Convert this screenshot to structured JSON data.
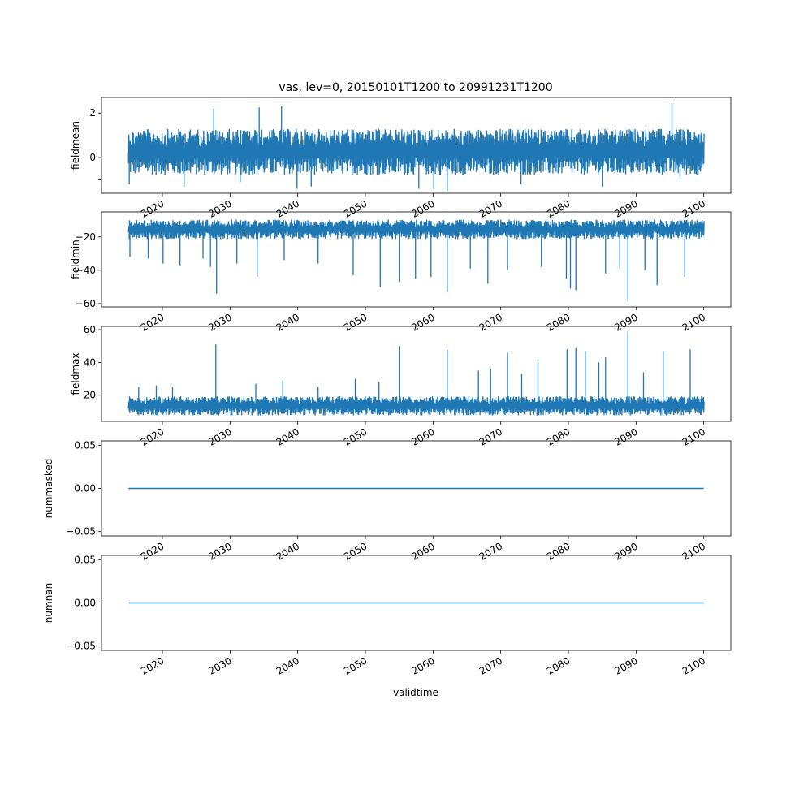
{
  "figure": {
    "title": "vas, lev=0, 20150101T1200 to 20991231T1200",
    "xlabel": "validtime"
  },
  "line_color": "#1f77b4",
  "chart_data": [
    {
      "type": "line",
      "ylabel": "fieldmean",
      "x_range": [
        2015.0,
        2100.0
      ],
      "xlim": [
        2011.0,
        2104.0
      ],
      "ylim": [
        -1.6,
        2.7
      ],
      "yticks": [
        -1,
        0,
        2
      ],
      "ytick_labels": [
        "",
        "0",
        "2"
      ],
      "xticks": [
        2020,
        2030,
        2040,
        2050,
        2060,
        2070,
        2080,
        2090,
        2100
      ],
      "xtick_labels": [
        "2020",
        "2030",
        "2040",
        "2050",
        "2060",
        "2070",
        "2080",
        "2090",
        "2100"
      ],
      "band_low": -0.9,
      "band_high": 1.4,
      "spikes": [
        {
          "x": 2015.1,
          "y": -1.2
        },
        {
          "x": 2023.2,
          "y": -1.3
        },
        {
          "x": 2027.6,
          "y": 2.2
        },
        {
          "x": 2031.5,
          "y": -1.1
        },
        {
          "x": 2034.3,
          "y": 2.25
        },
        {
          "x": 2037.6,
          "y": 2.3
        },
        {
          "x": 2039.9,
          "y": -1.4
        },
        {
          "x": 2042.0,
          "y": -1.3
        },
        {
          "x": 2057.9,
          "y": -1.4
        },
        {
          "x": 2060.1,
          "y": -1.4
        },
        {
          "x": 2062.1,
          "y": -1.5
        },
        {
          "x": 2073.0,
          "y": -1.2
        },
        {
          "x": 2085.0,
          "y": -1.3
        },
        {
          "x": 2095.3,
          "y": 2.45
        },
        {
          "x": 2096.5,
          "y": -1.0
        }
      ]
    },
    {
      "type": "line",
      "ylabel": "fieldmin",
      "x_range": [
        2015.0,
        2100.0
      ],
      "xlim": [
        2011.0,
        2104.0
      ],
      "ylim": [
        -62,
        -5
      ],
      "yticks": [
        -60,
        -40,
        -20
      ],
      "ytick_labels": [
        "−60",
        "−40",
        "−20"
      ],
      "xticks": [
        2020,
        2030,
        2040,
        2050,
        2060,
        2070,
        2080,
        2090,
        2100
      ],
      "xtick_labels": [
        "2020",
        "2030",
        "2040",
        "2050",
        "2060",
        "2070",
        "2080",
        "2090",
        "2100"
      ],
      "band_low": -22,
      "band_high": -9,
      "spikes": [
        {
          "x": 2015.2,
          "y": -32
        },
        {
          "x": 2017.9,
          "y": -33
        },
        {
          "x": 2020.1,
          "y": -36
        },
        {
          "x": 2022.6,
          "y": -37
        },
        {
          "x": 2026.0,
          "y": -33
        },
        {
          "x": 2027.1,
          "y": -38
        },
        {
          "x": 2028.0,
          "y": -54
        },
        {
          "x": 2031.0,
          "y": -36
        },
        {
          "x": 2034.0,
          "y": -44
        },
        {
          "x": 2038.0,
          "y": -34
        },
        {
          "x": 2043.0,
          "y": -36
        },
        {
          "x": 2048.2,
          "y": -43
        },
        {
          "x": 2052.2,
          "y": -50
        },
        {
          "x": 2055.0,
          "y": -47
        },
        {
          "x": 2057.4,
          "y": -45
        },
        {
          "x": 2059.7,
          "y": -44
        },
        {
          "x": 2062.1,
          "y": -53
        },
        {
          "x": 2065.5,
          "y": -39
        },
        {
          "x": 2068.1,
          "y": -48
        },
        {
          "x": 2071.0,
          "y": -40
        },
        {
          "x": 2076.0,
          "y": -38
        },
        {
          "x": 2079.7,
          "y": -45
        },
        {
          "x": 2080.3,
          "y": -51
        },
        {
          "x": 2081.1,
          "y": -52
        },
        {
          "x": 2085.5,
          "y": -42
        },
        {
          "x": 2087.6,
          "y": -39
        },
        {
          "x": 2088.8,
          "y": -59
        },
        {
          "x": 2091.3,
          "y": -40
        },
        {
          "x": 2093.1,
          "y": -49
        },
        {
          "x": 2097.2,
          "y": -44
        }
      ]
    },
    {
      "type": "line",
      "ylabel": "fieldmax",
      "x_range": [
        2015.0,
        2100.0
      ],
      "xlim": [
        2011.0,
        2104.0
      ],
      "ylim": [
        4,
        62
      ],
      "yticks": [
        20,
        40,
        60
      ],
      "ytick_labels": [
        "20",
        "40",
        "60"
      ],
      "xticks": [
        2020,
        2030,
        2040,
        2050,
        2060,
        2070,
        2080,
        2090,
        2100
      ],
      "xtick_labels": [
        "2020",
        "2030",
        "2040",
        "2050",
        "2060",
        "2070",
        "2080",
        "2090",
        "2100"
      ],
      "band_low": 7,
      "band_high": 20,
      "spikes": [
        {
          "x": 2016.5,
          "y": 25
        },
        {
          "x": 2019.1,
          "y": 26
        },
        {
          "x": 2021.5,
          "y": 25
        },
        {
          "x": 2027.9,
          "y": 51
        },
        {
          "x": 2033.8,
          "y": 27
        },
        {
          "x": 2037.8,
          "y": 29
        },
        {
          "x": 2043.0,
          "y": 25
        },
        {
          "x": 2048.5,
          "y": 30
        },
        {
          "x": 2052.0,
          "y": 28
        },
        {
          "x": 2055.0,
          "y": 50
        },
        {
          "x": 2062.1,
          "y": 48
        },
        {
          "x": 2066.7,
          "y": 35
        },
        {
          "x": 2068.5,
          "y": 36
        },
        {
          "x": 2071.0,
          "y": 46
        },
        {
          "x": 2073.1,
          "y": 33
        },
        {
          "x": 2075.5,
          "y": 42
        },
        {
          "x": 2079.8,
          "y": 48
        },
        {
          "x": 2081.1,
          "y": 49
        },
        {
          "x": 2082.5,
          "y": 47
        },
        {
          "x": 2084.5,
          "y": 40
        },
        {
          "x": 2085.5,
          "y": 43
        },
        {
          "x": 2088.8,
          "y": 59
        },
        {
          "x": 2091.1,
          "y": 34
        },
        {
          "x": 2094.0,
          "y": 47
        },
        {
          "x": 2098.0,
          "y": 48
        }
      ]
    },
    {
      "type": "line",
      "ylabel": "nummasked",
      "x_range": [
        2015.0,
        2100.0
      ],
      "xlim": [
        2011.0,
        2104.0
      ],
      "ylim": [
        -0.055,
        0.055
      ],
      "yticks": [
        -0.05,
        0.0,
        0.05
      ],
      "ytick_labels": [
        "−0.05",
        "0.00",
        "0.05"
      ],
      "xticks": [
        2020,
        2030,
        2040,
        2050,
        2060,
        2070,
        2080,
        2090,
        2100
      ],
      "xtick_labels": [
        "2020",
        "2030",
        "2040",
        "2050",
        "2060",
        "2070",
        "2080",
        "2090",
        "2100"
      ],
      "constant": 0.0
    },
    {
      "type": "line",
      "ylabel": "numnan",
      "x_range": [
        2015.0,
        2100.0
      ],
      "xlim": [
        2011.0,
        2104.0
      ],
      "ylim": [
        -0.055,
        0.055
      ],
      "yticks": [
        -0.05,
        0.0,
        0.05
      ],
      "ytick_labels": [
        "−0.05",
        "0.00",
        "0.05"
      ],
      "xticks": [
        2020,
        2030,
        2040,
        2050,
        2060,
        2070,
        2080,
        2090,
        2100
      ],
      "xtick_labels": [
        "2020",
        "2030",
        "2040",
        "2050",
        "2060",
        "2070",
        "2080",
        "2090",
        "2100"
      ],
      "constant": 0.0
    }
  ]
}
